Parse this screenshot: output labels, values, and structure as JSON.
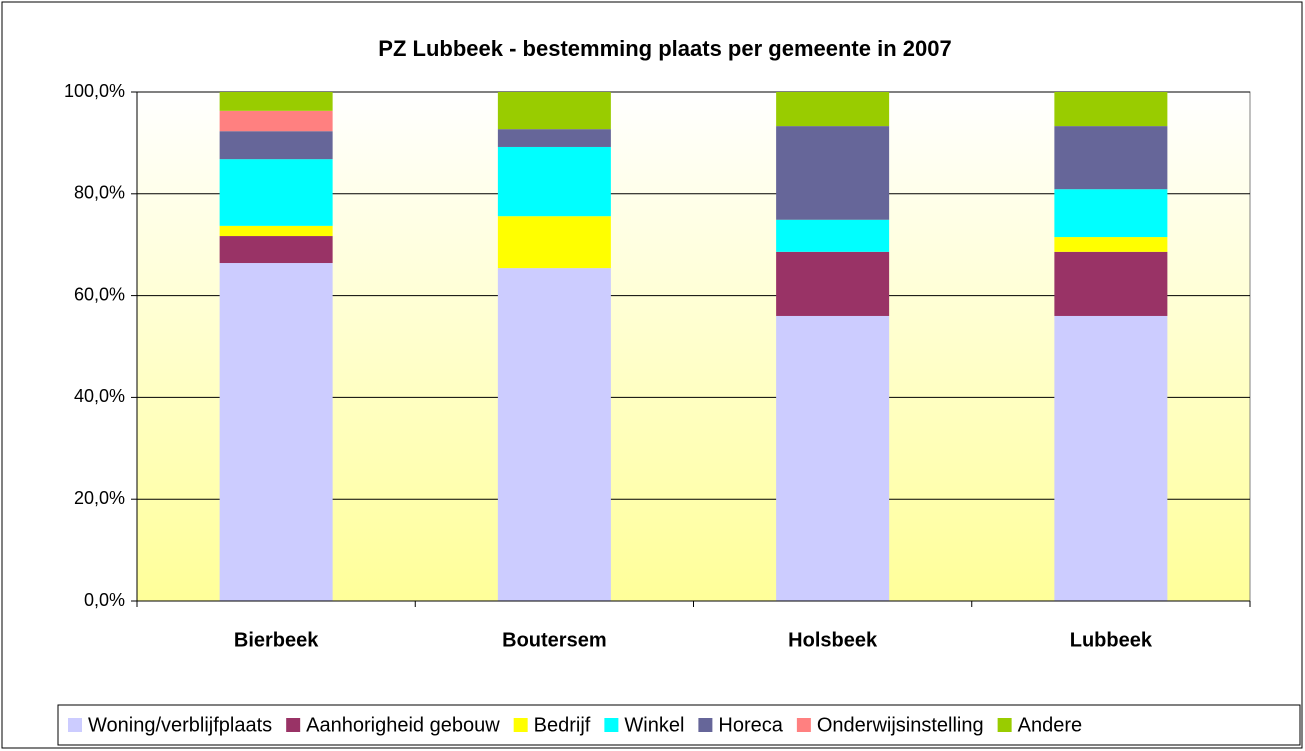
{
  "chart_data": {
    "type": "stacked_bar",
    "title": "PZ Lubbeek  - bestemming plaats per gemeente in 2007",
    "categories": [
      "Bierbeek",
      "Boutersem",
      "Holsbeek",
      "Lubbeek"
    ],
    "series": [
      {
        "name": "Woning/verblijfplaats",
        "color": "#ccccff",
        "values": [
          66.4,
          65.4,
          56.0,
          56.0
        ]
      },
      {
        "name": "Aanhorigheid gebouw",
        "color": "#993366",
        "values": [
          5.3,
          0,
          12.6,
          12.6
        ]
      },
      {
        "name": "Bedrijf",
        "color": "#ffff00",
        "values": [
          2.0,
          10.2,
          0,
          2.9
        ]
      },
      {
        "name": "Winkel",
        "color": "#00ffff",
        "values": [
          13.1,
          13.6,
          6.3,
          9.4
        ]
      },
      {
        "name": "Horeca",
        "color": "#666699",
        "values": [
          5.5,
          3.5,
          18.4,
          12.4
        ]
      },
      {
        "name": "Onderwijsinstelling",
        "color": "#ff8080",
        "values": [
          4.0,
          0,
          0,
          0
        ]
      },
      {
        "name": "Andere",
        "color": "#99cc00",
        "values": [
          3.7,
          7.3,
          6.7,
          6.7
        ]
      }
    ],
    "ylim": [
      0,
      100
    ],
    "yticks": [
      {
        "value": 0,
        "label": "0,0%"
      },
      {
        "value": 20,
        "label": "20,0%"
      },
      {
        "value": 40,
        "label": "40,0%"
      },
      {
        "value": 60,
        "label": "60,0%"
      },
      {
        "value": 80,
        "label": "80,0%"
      },
      {
        "value": 100,
        "label": "100,0%"
      }
    ],
    "grid": true,
    "legend": "bottom"
  }
}
